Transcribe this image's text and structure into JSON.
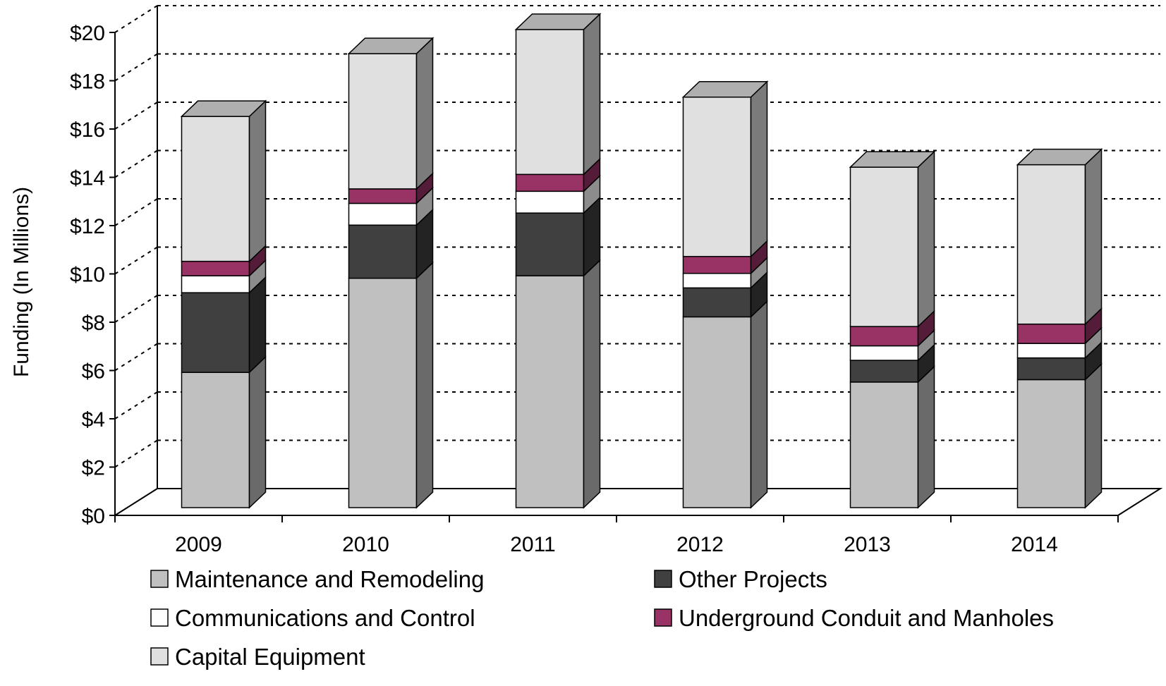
{
  "chart_data": {
    "type": "bar",
    "stacked": true,
    "three_d": true,
    "title": "",
    "xlabel": "",
    "ylabel": "Funding (In Millions)",
    "ylim": [
      0,
      20
    ],
    "ytick_step": 2,
    "ytick_prefix": "$",
    "grid": true,
    "legend_position": "bottom",
    "categories": [
      "2009",
      "2010",
      "2011",
      "2012",
      "2013",
      "2014"
    ],
    "series": [
      {
        "name": "Maintenance and Remodeling",
        "color": "#c0c0c0",
        "values": [
          5.6,
          9.5,
          9.6,
          7.9,
          5.2,
          5.3
        ]
      },
      {
        "name": "Other Projects",
        "color": "#404040",
        "values": [
          3.3,
          2.2,
          2.6,
          1.2,
          0.9,
          0.9
        ]
      },
      {
        "name": "Communications and Control",
        "color": "#ffffff",
        "values": [
          0.7,
          0.9,
          0.9,
          0.6,
          0.6,
          0.6
        ]
      },
      {
        "name": "Underground Conduit and Manholes",
        "color": "#993366",
        "values": [
          0.6,
          0.6,
          0.7,
          0.7,
          0.8,
          0.8
        ]
      },
      {
        "name": "Capital Equipment",
        "color": "#e0e0e0",
        "values": [
          6.0,
          5.6,
          6.0,
          6.6,
          6.6,
          6.6
        ]
      }
    ]
  }
}
